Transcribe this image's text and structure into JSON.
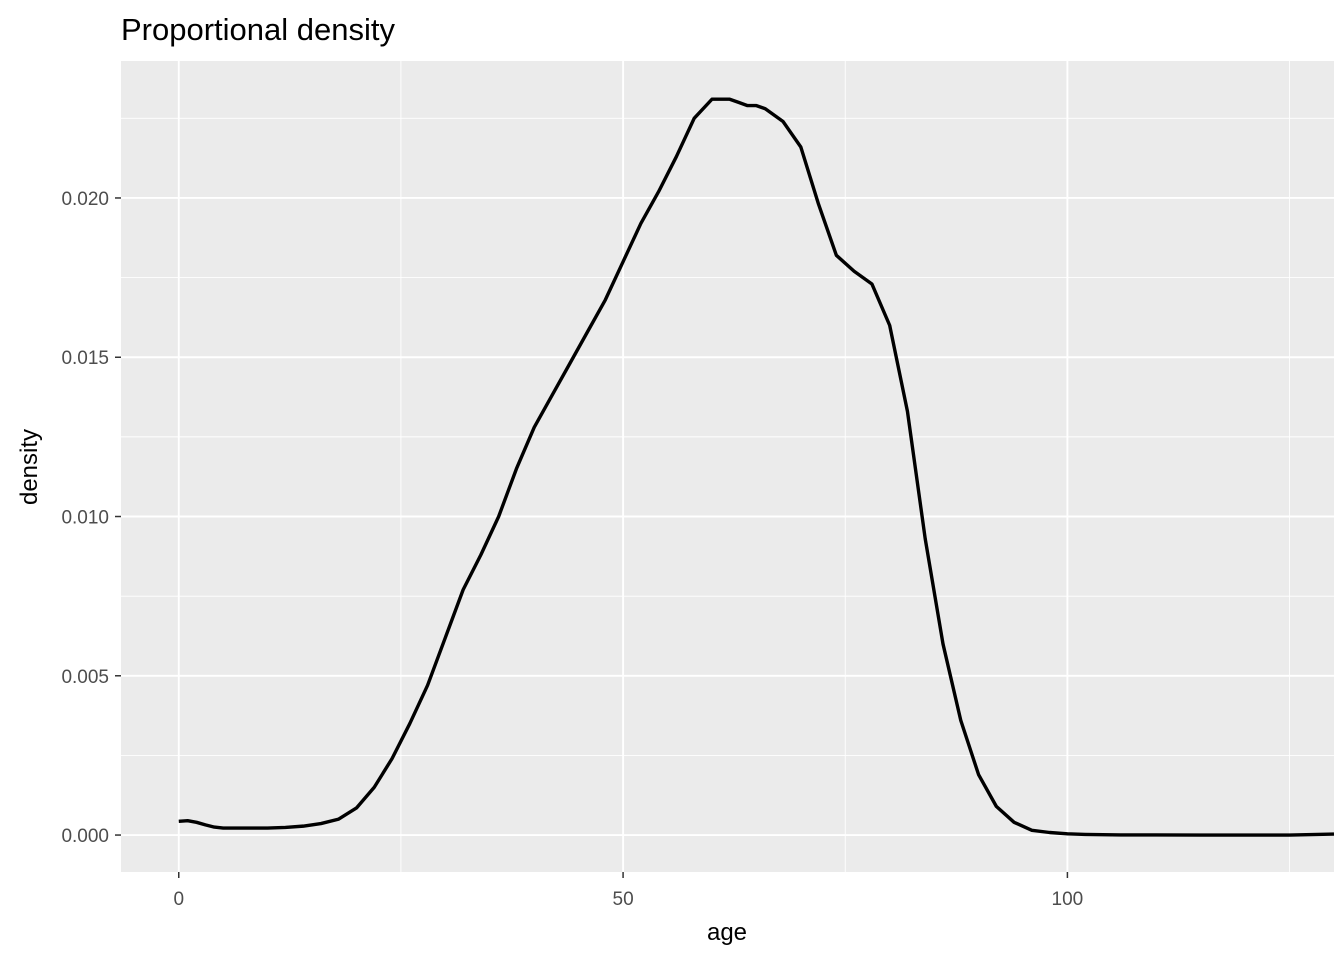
{
  "chart_data": {
    "type": "line",
    "title": "Proportional density",
    "xlabel": "age",
    "ylabel": "density",
    "xlim": [
      -6.5,
      130
    ],
    "ylim": [
      -0.00116,
      0.0243
    ],
    "x_ticks": [
      0,
      50,
      100
    ],
    "x_tick_labels": [
      "0",
      "50",
      "100"
    ],
    "y_ticks": [
      0.0,
      0.005,
      0.01,
      0.015,
      0.02
    ],
    "y_tick_labels": [
      "0.000",
      "0.005",
      "0.010",
      "0.015",
      "0.020"
    ],
    "grid": true,
    "colors": {
      "panel": "#ebebeb",
      "grid": "#ffffff",
      "line": "#000000"
    },
    "series": [
      {
        "x": [
          0,
          1,
          2,
          3,
          4,
          5,
          6,
          8,
          10,
          12,
          14,
          16,
          18,
          20,
          22,
          24,
          26,
          28,
          30,
          32,
          34,
          36,
          38,
          40,
          42,
          44,
          46,
          48,
          50,
          52,
          54,
          56,
          58,
          60,
          62,
          63,
          64,
          65,
          66,
          68,
          70,
          72,
          74,
          76,
          78,
          80,
          82,
          84,
          86,
          88,
          90,
          92,
          94,
          96,
          98,
          100,
          102,
          104,
          106,
          108,
          110,
          115,
          120,
          125,
          130
        ],
        "values": [
          0.00043,
          0.00045,
          0.0004,
          0.00032,
          0.00025,
          0.00022,
          0.00022,
          0.00022,
          0.00022,
          0.00024,
          0.00028,
          0.00036,
          0.0005,
          0.00085,
          0.0015,
          0.0024,
          0.0035,
          0.0047,
          0.0062,
          0.0077,
          0.0088,
          0.01,
          0.0115,
          0.0128,
          0.0138,
          0.0148,
          0.0158,
          0.0168,
          0.018,
          0.0192,
          0.0202,
          0.0213,
          0.0225,
          0.0231,
          0.0231,
          0.023,
          0.0229,
          0.0229,
          0.0228,
          0.0224,
          0.0216,
          0.0198,
          0.0182,
          0.0177,
          0.0173,
          0.016,
          0.0133,
          0.0093,
          0.006,
          0.0036,
          0.0019,
          0.0009,
          0.0004,
          0.00015,
          8e-05,
          4e-05,
          2e-05,
          1e-05,
          5e-06,
          4e-06,
          3e-06,
          0.0,
          0.0,
          0.0,
          3e-05
        ]
      }
    ]
  }
}
